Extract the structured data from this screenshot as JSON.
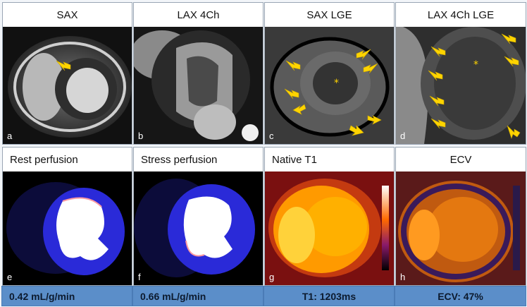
{
  "top_row": [
    {
      "title": "SAX",
      "letter": "a"
    },
    {
      "title": "LAX 4Ch",
      "letter": "b"
    },
    {
      "title": "SAX LGE",
      "letter": "c"
    },
    {
      "title": "LAX 4Ch LGE",
      "letter": "d"
    }
  ],
  "bottom_row": [
    {
      "title": "Rest perfusion",
      "letter": "e",
      "value": "0.42 mL/g/min"
    },
    {
      "title": "Stress perfusion",
      "letter": "f",
      "value": "0.66 mL/g/min"
    },
    {
      "title": "Native T1",
      "letter": "g",
      "value": "T1: 1203ms"
    },
    {
      "title": "ECV",
      "letter": "h",
      "value": "ECV: 47%"
    }
  ],
  "colors": {
    "arrow": "#ffd400",
    "value_bar": "#5b8ec9",
    "perfusion_bg": "#1a1aa8",
    "t1_map": "#ff9a00"
  },
  "markers": {
    "lge_star": "*"
  }
}
